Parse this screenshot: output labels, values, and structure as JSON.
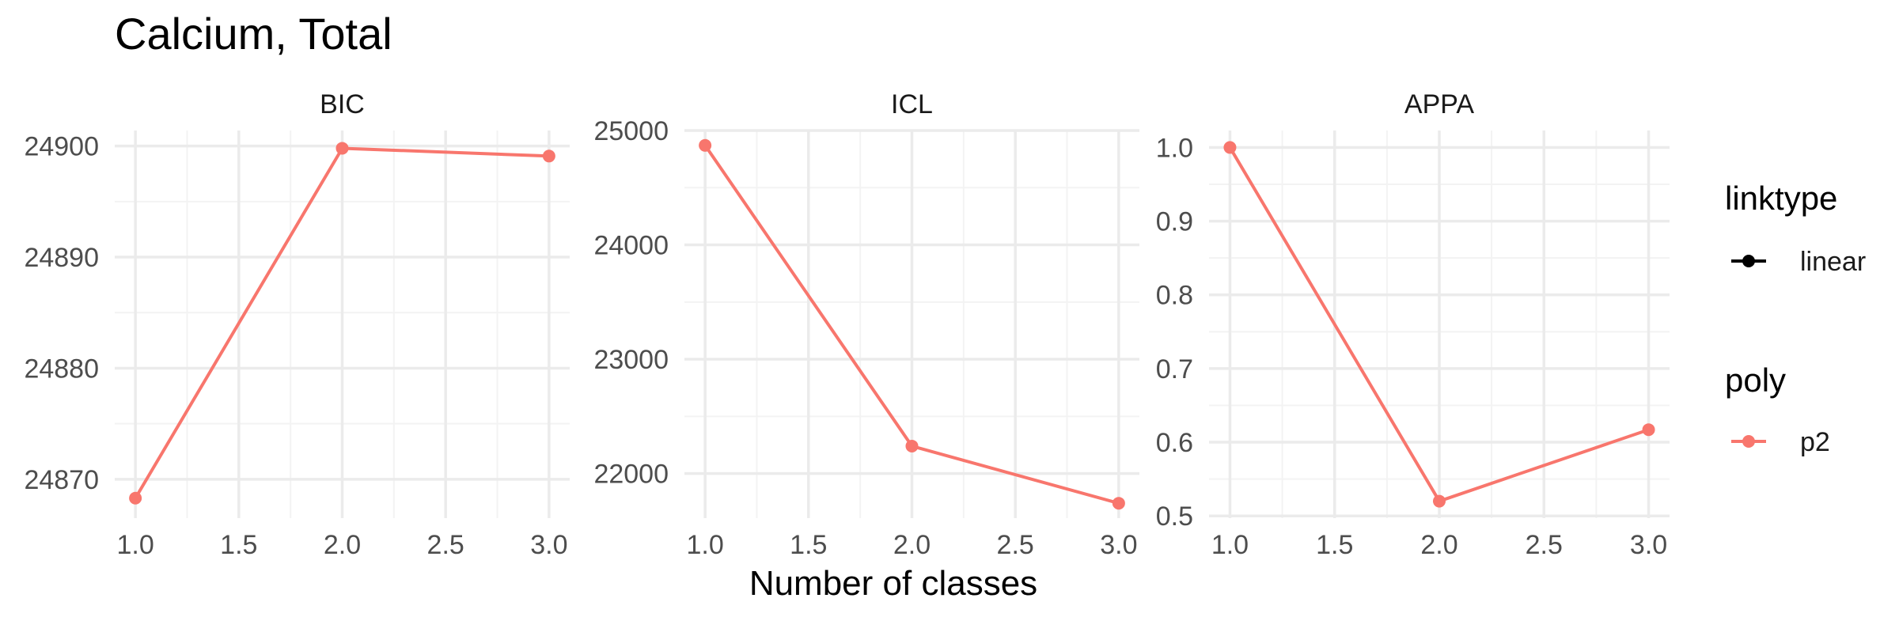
{
  "title": "Calcium, Total",
  "xlabel": "Number of classes",
  "colors": {
    "series": "#F8766D",
    "legend_black": "#000000",
    "grid_major": "#EBEBEB",
    "grid_minor": "#F3F3F3"
  },
  "legend": {
    "groups": [
      {
        "title": "linktype",
        "items": [
          {
            "label": "linear",
            "color": "#000000"
          }
        ]
      },
      {
        "title": "poly",
        "items": [
          {
            "label": "p2",
            "color": "#F8766D"
          }
        ]
      }
    ]
  },
  "chart_data": [
    {
      "type": "line",
      "panel": "BIC",
      "x": [
        1.0,
        2.0,
        3.0
      ],
      "series": [
        {
          "name": "p2",
          "values": [
            24868.3,
            24899.8,
            24899.1
          ]
        }
      ],
      "xlim": [
        0.9,
        3.1
      ],
      "ylim": [
        24866.5,
        24901.4
      ],
      "xticks": [
        1.0,
        1.5,
        2.0,
        2.5,
        3.0
      ],
      "xtick_labels": [
        "1.0",
        "1.5",
        "2.0",
        "2.5",
        "3.0"
      ],
      "yticks": [
        24870,
        24880,
        24890,
        24900
      ],
      "ytick_labels": [
        "24870",
        "24880",
        "24890",
        "24900"
      ],
      "grid": true
    },
    {
      "type": "line",
      "panel": "ICL",
      "x": [
        1.0,
        2.0,
        3.0
      ],
      "series": [
        {
          "name": "p2",
          "values": [
            24870,
            22240,
            21740
          ]
        }
      ],
      "xlim": [
        0.9,
        3.1
      ],
      "ylim": [
        21610,
        25000
      ],
      "xticks": [
        1.0,
        1.5,
        2.0,
        2.5,
        3.0
      ],
      "xtick_labels": [
        "1.0",
        "1.5",
        "2.0",
        "2.5",
        "3.0"
      ],
      "yticks": [
        22000,
        23000,
        24000,
        25000
      ],
      "ytick_labels": [
        "22000",
        "23000",
        "24000",
        "25000"
      ],
      "grid": true
    },
    {
      "type": "line",
      "panel": "APPA",
      "x": [
        1.0,
        2.0,
        3.0
      ],
      "series": [
        {
          "name": "p2",
          "values": [
            1.0,
            0.52,
            0.617
          ]
        }
      ],
      "xlim": [
        0.9,
        3.1
      ],
      "ylim": [
        0.497,
        1.023
      ],
      "xticks": [
        1.0,
        1.5,
        2.0,
        2.5,
        3.0
      ],
      "xtick_labels": [
        "1.0",
        "1.5",
        "2.0",
        "2.5",
        "3.0"
      ],
      "yticks": [
        0.5,
        0.6,
        0.7,
        0.8,
        0.9,
        1.0
      ],
      "ytick_labels": [
        "0.5",
        "0.6",
        "0.7",
        "0.8",
        "0.9",
        "1.0"
      ],
      "grid": true
    }
  ]
}
